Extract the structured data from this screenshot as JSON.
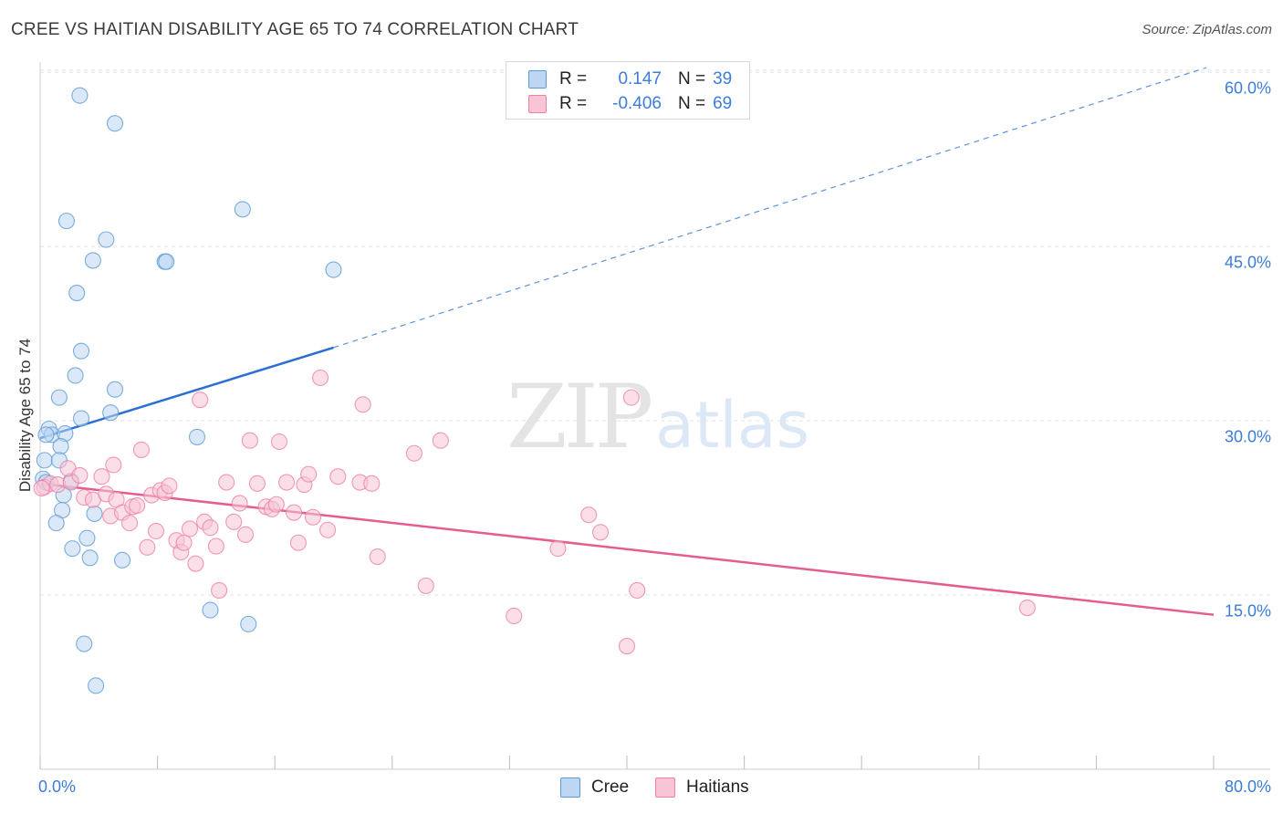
{
  "title": "CREE VS HAITIAN DISABILITY AGE 65 TO 74 CORRELATION CHART",
  "source": "Source: ZipAtlas.com",
  "colors": {
    "cree": "#5b9bd5",
    "cree_fill": "#bcd6f3",
    "cree_line": "#2a6fd1",
    "haitian": "#ee7fa6",
    "haitian_fill": "#f7c5d6",
    "haitian_line": "#e35d8f",
    "axis_label": "#3c7dd9",
    "grid": "#e2e2e2"
  },
  "legend": {
    "rows": [
      {
        "r_label": "R =",
        "r_value": "0.147",
        "n_label": "N =",
        "n_value": "39",
        "series": "cree"
      },
      {
        "r_label": "R =",
        "r_value": "-0.406",
        "n_label": "N =",
        "n_value": "69",
        "series": "haitian"
      }
    ],
    "bottom": [
      {
        "name": "Cree",
        "series": "cree"
      },
      {
        "name": "Haitians",
        "series": "haitian"
      }
    ]
  },
  "chart_data": {
    "type": "scatter",
    "title": "CREE VS HAITIAN DISABILITY AGE 65 TO 74 CORRELATION CHART",
    "ylabel": "Disability Age 65 to 74",
    "xlabel": "",
    "xlim": [
      0,
      80
    ],
    "ylim": [
      0,
      63
    ],
    "x_tick_labels": [
      "0.0%",
      "80.0%"
    ],
    "y_ticks": [
      15,
      30,
      45,
      60
    ],
    "y_tick_labels": [
      "15.0%",
      "30.0%",
      "45.0%",
      "60.0%"
    ],
    "grid": true,
    "watermark": {
      "zip": "ZIP",
      "atlas": "atlas"
    },
    "series": [
      {
        "name": "Cree",
        "color": "#5b9bd5",
        "points": [
          [
            2.7,
            58.0
          ],
          [
            5.1,
            55.6
          ],
          [
            1.8,
            47.2
          ],
          [
            4.5,
            45.6
          ],
          [
            3.6,
            43.8
          ],
          [
            8.5,
            43.7
          ],
          [
            8.6,
            43.7
          ],
          [
            13.8,
            48.2
          ],
          [
            20.0,
            43.0
          ],
          [
            2.5,
            41.0
          ],
          [
            2.8,
            36.0
          ],
          [
            2.4,
            33.9
          ],
          [
            1.3,
            32.0
          ],
          [
            5.1,
            32.7
          ],
          [
            2.8,
            30.2
          ],
          [
            4.8,
            30.7
          ],
          [
            0.6,
            29.3
          ],
          [
            0.8,
            28.8
          ],
          [
            1.7,
            28.9
          ],
          [
            1.4,
            27.8
          ],
          [
            10.7,
            28.6
          ],
          [
            0.3,
            26.6
          ],
          [
            1.3,
            26.6
          ],
          [
            0.2,
            25.0
          ],
          [
            0.4,
            24.7
          ],
          [
            2.1,
            24.8
          ],
          [
            1.6,
            23.6
          ],
          [
            1.5,
            22.3
          ],
          [
            3.7,
            22.0
          ],
          [
            1.1,
            21.2
          ],
          [
            3.2,
            19.9
          ],
          [
            2.2,
            19.0
          ],
          [
            3.4,
            18.2
          ],
          [
            5.6,
            18.0
          ],
          [
            11.6,
            13.7
          ],
          [
            14.2,
            12.5
          ],
          [
            3.0,
            10.8
          ],
          [
            3.8,
            7.2
          ],
          [
            0.4,
            28.8
          ]
        ]
      },
      {
        "name": "Haitians",
        "color": "#ee7fa6",
        "points": [
          [
            0.3,
            24.3
          ],
          [
            0.7,
            24.6
          ],
          [
            1.2,
            24.5
          ],
          [
            2.1,
            24.7
          ],
          [
            1.9,
            25.9
          ],
          [
            2.7,
            25.3
          ],
          [
            3.0,
            23.4
          ],
          [
            3.6,
            23.2
          ],
          [
            4.2,
            25.2
          ],
          [
            4.5,
            23.7
          ],
          [
            5.0,
            26.2
          ],
          [
            5.2,
            23.2
          ],
          [
            4.8,
            21.8
          ],
          [
            5.6,
            22.1
          ],
          [
            6.1,
            21.2
          ],
          [
            6.3,
            22.6
          ],
          [
            6.6,
            22.7
          ],
          [
            6.9,
            27.5
          ],
          [
            7.3,
            19.1
          ],
          [
            7.6,
            23.6
          ],
          [
            7.9,
            20.5
          ],
          [
            8.2,
            24.0
          ],
          [
            8.5,
            23.8
          ],
          [
            8.8,
            24.4
          ],
          [
            9.3,
            19.7
          ],
          [
            9.6,
            18.7
          ],
          [
            9.8,
            19.5
          ],
          [
            10.2,
            20.7
          ],
          [
            10.6,
            17.7
          ],
          [
            10.9,
            31.8
          ],
          [
            11.2,
            21.3
          ],
          [
            11.6,
            20.8
          ],
          [
            12.0,
            19.2
          ],
          [
            12.2,
            15.4
          ],
          [
            12.7,
            24.7
          ],
          [
            13.2,
            21.3
          ],
          [
            13.6,
            22.9
          ],
          [
            14.0,
            20.2
          ],
          [
            14.3,
            28.3
          ],
          [
            14.8,
            24.6
          ],
          [
            15.4,
            22.6
          ],
          [
            15.8,
            22.4
          ],
          [
            16.1,
            22.8
          ],
          [
            16.3,
            28.2
          ],
          [
            16.8,
            24.7
          ],
          [
            17.3,
            22.1
          ],
          [
            17.6,
            19.5
          ],
          [
            18.0,
            24.5
          ],
          [
            18.3,
            25.4
          ],
          [
            18.6,
            21.7
          ],
          [
            19.1,
            33.7
          ],
          [
            19.6,
            20.6
          ],
          [
            20.3,
            25.2
          ],
          [
            21.8,
            24.7
          ],
          [
            22.0,
            31.4
          ],
          [
            22.6,
            24.6
          ],
          [
            23.0,
            18.3
          ],
          [
            25.5,
            27.2
          ],
          [
            26.3,
            15.8
          ],
          [
            27.3,
            28.3
          ],
          [
            32.3,
            13.2
          ],
          [
            35.3,
            19.0
          ],
          [
            37.4,
            21.9
          ],
          [
            38.2,
            20.4
          ],
          [
            40.0,
            10.6
          ],
          [
            40.3,
            32.0
          ],
          [
            40.7,
            15.4
          ],
          [
            67.3,
            13.9
          ],
          [
            0.1,
            24.2
          ]
        ]
      }
    ],
    "trend_lines": [
      {
        "series": "Cree",
        "from": [
          0,
          28.5
        ],
        "solid_to": [
          20.0,
          36.3
        ],
        "dashed_to": [
          79.5,
          60.4
        ]
      },
      {
        "series": "Haitians",
        "from": [
          0,
          24.6
        ],
        "to": [
          80,
          13.3
        ]
      }
    ]
  }
}
